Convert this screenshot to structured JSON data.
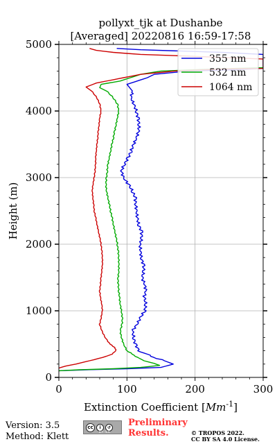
{
  "chart_data": {
    "type": "line",
    "title": "pollyxt_tjk at Dushanbe",
    "subtitle": "[Averaged] 20220816 16:59-17:58",
    "xlabel": "Extinction Coefficient [",
    "xlabel_unit": "Mm",
    "xlabel_exp": "-1",
    "xlabel_close": "]",
    "ylabel": "Height (m)",
    "xlim": [
      0,
      300
    ],
    "ylim": [
      0,
      5000
    ],
    "x_ticks": [
      0,
      100,
      200,
      300
    ],
    "x_tick_labels": [
      "0",
      "100",
      "200",
      "300"
    ],
    "y_ticks": [
      0,
      1000,
      2000,
      3000,
      4000,
      5000
    ],
    "y_tick_labels": [
      "0",
      "1000",
      "2000",
      "3000",
      "4000",
      "5000"
    ],
    "grid": true,
    "legend_position": "top-right",
    "series": [
      {
        "name": "355 nm",
        "color": "#0000dd",
        "points": [
          [
            0,
            100
          ],
          [
            40,
            115
          ],
          [
            100,
            130
          ],
          [
            150,
            150
          ],
          [
            168,
            200
          ],
          [
            155,
            250
          ],
          [
            140,
            300
          ],
          [
            128,
            350
          ],
          [
            118,
            400
          ],
          [
            112,
            500
          ],
          [
            110,
            600
          ],
          [
            108,
            700
          ],
          [
            115,
            800
          ],
          [
            120,
            900
          ],
          [
            126,
            1000
          ],
          [
            128,
            1100
          ],
          [
            125,
            1200
          ],
          [
            128,
            1300
          ],
          [
            126,
            1400
          ],
          [
            122,
            1500
          ],
          [
            125,
            1600
          ],
          [
            124,
            1700
          ],
          [
            121,
            1800
          ],
          [
            120,
            1900
          ],
          [
            119,
            2000
          ],
          [
            122,
            2100
          ],
          [
            121,
            2200
          ],
          [
            117,
            2300
          ],
          [
            115,
            2400
          ],
          [
            114,
            2500
          ],
          [
            113,
            2600
          ],
          [
            112,
            2700
          ],
          [
            108,
            2800
          ],
          [
            102,
            2900
          ],
          [
            95,
            3000
          ],
          [
            92,
            3100
          ],
          [
            96,
            3200
          ],
          [
            102,
            3300
          ],
          [
            106,
            3400
          ],
          [
            110,
            3500
          ],
          [
            114,
            3600
          ],
          [
            117,
            3700
          ],
          [
            118,
            3800
          ],
          [
            116,
            3900
          ],
          [
            114,
            4000
          ],
          [
            110,
            4100
          ],
          [
            106,
            4200
          ],
          [
            108,
            4300
          ],
          [
            100,
            4400
          ],
          [
            130,
            4500
          ],
          [
            140,
            4550
          ],
          [
            190,
            4600
          ],
          [
            260,
            4620
          ],
          [
            300,
            4640
          ],
          [
            300,
            4850
          ],
          [
            240,
            4880
          ],
          [
            180,
            4900
          ],
          [
            120,
            4920
          ],
          [
            85,
            4940
          ]
        ]
      },
      {
        "name": "532 nm",
        "color": "#00aa00",
        "points": [
          [
            0,
            100
          ],
          [
            30,
            115
          ],
          [
            80,
            130
          ],
          [
            120,
            150
          ],
          [
            148,
            180
          ],
          [
            140,
            210
          ],
          [
            125,
            250
          ],
          [
            115,
            300
          ],
          [
            108,
            350
          ],
          [
            100,
            400
          ],
          [
            95,
            500
          ],
          [
            92,
            600
          ],
          [
            90,
            700
          ],
          [
            93,
            800
          ],
          [
            93,
            900
          ],
          [
            92,
            1000
          ],
          [
            90,
            1100
          ],
          [
            89,
            1200
          ],
          [
            88,
            1300
          ],
          [
            87,
            1400
          ],
          [
            87,
            1500
          ],
          [
            88,
            1600
          ],
          [
            88,
            1700
          ],
          [
            88,
            1800
          ],
          [
            87,
            1900
          ],
          [
            86,
            2000
          ],
          [
            84,
            2100
          ],
          [
            82,
            2200
          ],
          [
            80,
            2300
          ],
          [
            78,
            2400
          ],
          [
            76,
            2500
          ],
          [
            74,
            2600
          ],
          [
            72,
            2700
          ],
          [
            70,
            2800
          ],
          [
            69,
            2900
          ],
          [
            70,
            3000
          ],
          [
            71,
            3100
          ],
          [
            72,
            3200
          ],
          [
            74,
            3300
          ],
          [
            76,
            3400
          ],
          [
            78,
            3500
          ],
          [
            80,
            3600
          ],
          [
            82,
            3700
          ],
          [
            84,
            3800
          ],
          [
            86,
            3900
          ],
          [
            88,
            4000
          ],
          [
            86,
            4100
          ],
          [
            80,
            4200
          ],
          [
            70,
            4300
          ],
          [
            60,
            4350
          ],
          [
            62,
            4400
          ],
          [
            90,
            4450
          ],
          [
            105,
            4500
          ],
          [
            120,
            4550
          ],
          [
            150,
            4600
          ],
          [
            200,
            4620
          ],
          [
            260,
            4640
          ],
          [
            300,
            4650
          ]
        ]
      },
      {
        "name": "1064 nm",
        "color": "#cc0000",
        "points": [
          [
            0,
            140
          ],
          [
            10,
            170
          ],
          [
            25,
            200
          ],
          [
            45,
            250
          ],
          [
            65,
            300
          ],
          [
            78,
            350
          ],
          [
            84,
            400
          ],
          [
            82,
            450
          ],
          [
            75,
            500
          ],
          [
            68,
            600
          ],
          [
            63,
            700
          ],
          [
            60,
            800
          ],
          [
            62,
            900
          ],
          [
            64,
            1000
          ],
          [
            63,
            1100
          ],
          [
            61,
            1200
          ],
          [
            60,
            1300
          ],
          [
            61,
            1400
          ],
          [
            62,
            1500
          ],
          [
            63,
            1600
          ],
          [
            64,
            1700
          ],
          [
            64,
            1800
          ],
          [
            63,
            1900
          ],
          [
            62,
            2000
          ],
          [
            60,
            2100
          ],
          [
            58,
            2200
          ],
          [
            56,
            2300
          ],
          [
            54,
            2400
          ],
          [
            52,
            2500
          ],
          [
            51,
            2600
          ],
          [
            50,
            2700
          ],
          [
            49,
            2800
          ],
          [
            50,
            2900
          ],
          [
            52,
            3000
          ],
          [
            53,
            3100
          ],
          [
            54,
            3200
          ],
          [
            54,
            3300
          ],
          [
            55,
            3400
          ],
          [
            56,
            3500
          ],
          [
            57,
            3600
          ],
          [
            58,
            3700
          ],
          [
            59,
            3800
          ],
          [
            60,
            3900
          ],
          [
            62,
            4000
          ],
          [
            60,
            4100
          ],
          [
            56,
            4200
          ],
          [
            48,
            4300
          ],
          [
            40,
            4360
          ],
          [
            55,
            4420
          ],
          [
            80,
            4470
          ],
          [
            95,
            4500
          ],
          [
            120,
            4550
          ],
          [
            170,
            4600
          ],
          [
            240,
            4630
          ],
          [
            300,
            4640
          ],
          [
            300,
            4780
          ],
          [
            200,
            4820
          ],
          [
            120,
            4850
          ],
          [
            80,
            4880
          ],
          [
            55,
            4910
          ],
          [
            45,
            4940
          ]
        ]
      }
    ]
  },
  "footer": {
    "version": "Version: 3.5",
    "method": "Method: Klett",
    "preliminary_line1": "Preliminary",
    "preliminary_line2": "Results.",
    "copyright": "© TROPOS 2022.",
    "license": "CC BY SA 4.0 License."
  },
  "cc_badge": {
    "icon": "cc-by-sa-icon",
    "cc": "cc",
    "by": "i",
    "sa": "↺",
    "sub": "BY SA"
  }
}
